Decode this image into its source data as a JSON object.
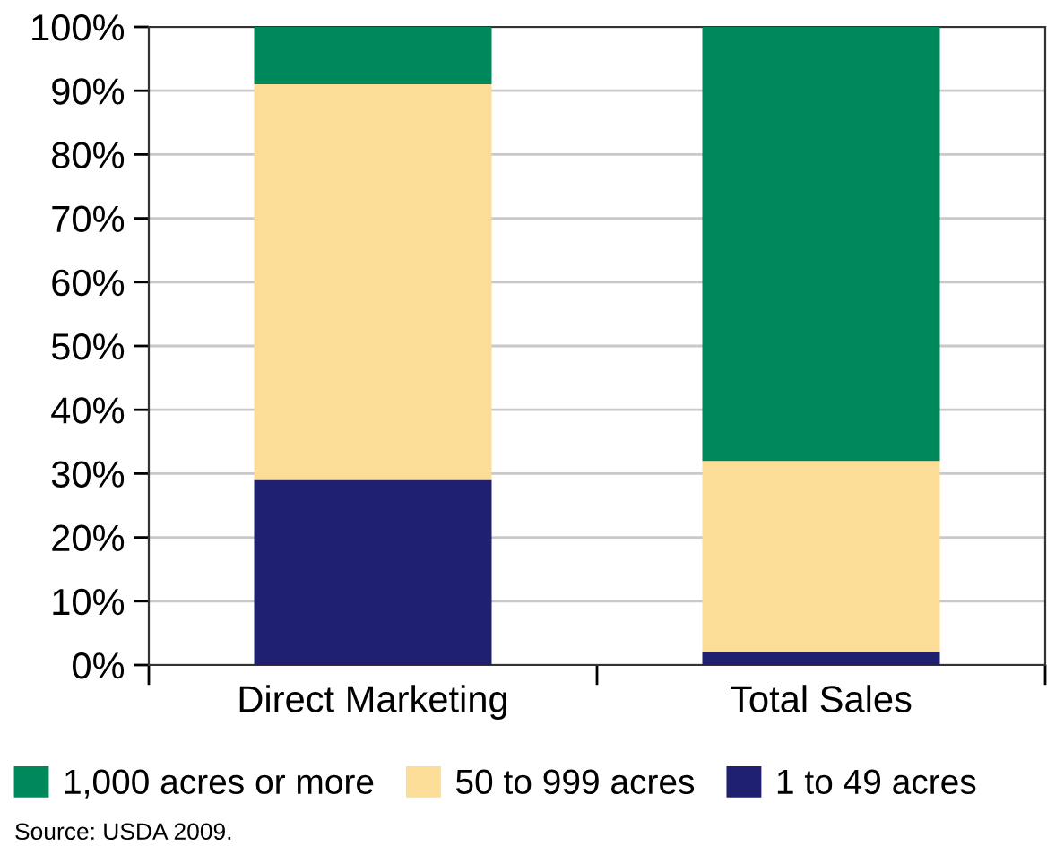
{
  "chart_data": {
    "type": "bar",
    "stacked": true,
    "categories": [
      "Direct Marketing",
      "Total Sales"
    ],
    "series": [
      {
        "name": "1 to 49 acres",
        "color": "#1f2070",
        "values": [
          29,
          2
        ]
      },
      {
        "name": "50 to 999 acres",
        "color": "#fcdd98",
        "values": [
          62,
          30
        ]
      },
      {
        "name": "1,000 acres or more",
        "color": "#00885d",
        "values": [
          9,
          68
        ]
      }
    ],
    "ylim": [
      0,
      100
    ],
    "yticks": [
      {
        "value": 0,
        "label": "0%"
      },
      {
        "value": 10,
        "label": "10%"
      },
      {
        "value": 20,
        "label": "20%"
      },
      {
        "value": 30,
        "label": "30%"
      },
      {
        "value": 40,
        "label": "40%"
      },
      {
        "value": 50,
        "label": "50%"
      },
      {
        "value": 60,
        "label": "60%"
      },
      {
        "value": 70,
        "label": "70%"
      },
      {
        "value": 80,
        "label": "80%"
      },
      {
        "value": 90,
        "label": "90%"
      },
      {
        "value": 100,
        "label": "100%"
      }
    ],
    "grid": "y",
    "legend": "bottom",
    "annotations": [
      "Source: USDA 2009."
    ]
  }
}
